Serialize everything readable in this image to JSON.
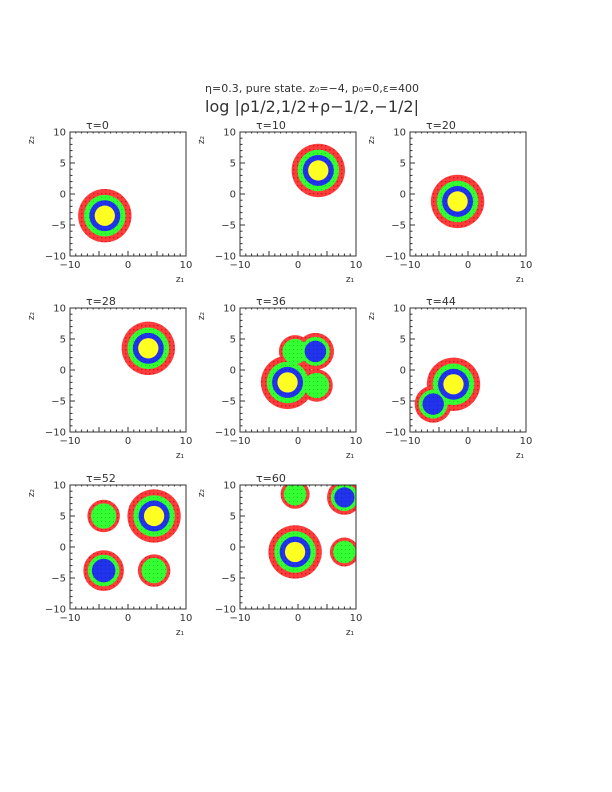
{
  "figure": {
    "title_line1": "η=0.3, pure state.  z₀=−4, p₀=0,ε=400",
    "title_line2": "log |ρ1/2,1/2+ρ−1/2,−1/2|"
  },
  "colors": {
    "ring_outer": "#ff3b3b",
    "ring_outer_dot": "#c41a1a",
    "ring_green": "#33ff33",
    "ring_blue": "#2233ee",
    "core": "#ffff22",
    "axis": "#333333"
  },
  "chart_data": [
    {
      "type": "heatmap",
      "tau_label": "τ=0",
      "xlabel": "z₁",
      "ylabel": "z₂",
      "xlim": [
        -10,
        10
      ],
      "ylim": [
        -10,
        10
      ],
      "xticks": [
        "−10",
        "0",
        "10"
      ],
      "yticks": [
        "10",
        "5",
        "0",
        "−5",
        "−10"
      ],
      "blobs": [
        {
          "x": -4,
          "y": -3.5,
          "r": 4.6,
          "levels": 4
        }
      ]
    },
    {
      "type": "heatmap",
      "tau_label": "τ=10",
      "xlabel": "z₁",
      "ylabel": "z₂",
      "xlim": [
        -10,
        10
      ],
      "ylim": [
        -10,
        10
      ],
      "xticks": [
        "−10",
        "0",
        "10"
      ],
      "yticks": [
        "10",
        "5",
        "0",
        "−5",
        "−10"
      ],
      "blobs": [
        {
          "x": 3.5,
          "y": 3.8,
          "r": 4.6,
          "levels": 4
        }
      ]
    },
    {
      "type": "heatmap",
      "tau_label": "τ=20",
      "xlabel": "z₁",
      "ylabel": "z₂",
      "xlim": [
        -10,
        10
      ],
      "ylim": [
        -10,
        10
      ],
      "xticks": [
        "−10",
        "0",
        "10"
      ],
      "yticks": [
        "10",
        "5",
        "0",
        "−5",
        "−10"
      ],
      "blobs": [
        {
          "x": -1.8,
          "y": -1.2,
          "r": 4.6,
          "levels": 4
        }
      ]
    },
    {
      "type": "heatmap",
      "tau_label": "τ=28",
      "xlabel": "z₁",
      "ylabel": "z₂",
      "xlim": [
        -10,
        10
      ],
      "ylim": [
        -10,
        10
      ],
      "xticks": [
        "−10",
        "0",
        "10"
      ],
      "yticks": [
        "10",
        "5",
        "0",
        "−5",
        "−10"
      ],
      "blobs": [
        {
          "x": 3.5,
          "y": 3.5,
          "r": 4.6,
          "levels": 4
        }
      ]
    },
    {
      "type": "heatmap",
      "tau_label": "τ=36",
      "xlabel": "z₁",
      "ylabel": "z₂",
      "xlim": [
        -10,
        10
      ],
      "ylim": [
        -10,
        10
      ],
      "xticks": [
        "−10",
        "0",
        "10"
      ],
      "yticks": [
        "10",
        "5",
        "0",
        "−5",
        "−10"
      ],
      "blobs": [
        {
          "x": -0.5,
          "y": 3.0,
          "r": 2.8,
          "levels": 2
        },
        {
          "x": 3.0,
          "y": 3.0,
          "r": 3.2,
          "levels": 3
        },
        {
          "x": 3.2,
          "y": -2.5,
          "r": 2.8,
          "levels": 2
        },
        {
          "x": -1.8,
          "y": -2.0,
          "r": 4.6,
          "levels": 4
        }
      ]
    },
    {
      "type": "heatmap",
      "tau_label": "τ=44",
      "xlabel": "z₁",
      "ylabel": "z₂",
      "xlim": [
        -10,
        10
      ],
      "ylim": [
        -10,
        10
      ],
      "xticks": [
        "−10",
        "0",
        "10"
      ],
      "yticks": [
        "10",
        "5",
        "0",
        "−5",
        "−10"
      ],
      "blobs": [
        {
          "x": -6.0,
          "y": -5.5,
          "r": 3.2,
          "levels": 3
        },
        {
          "x": -2.5,
          "y": -2.3,
          "r": 4.6,
          "levels": 4
        }
      ]
    },
    {
      "type": "heatmap",
      "tau_label": "τ=52",
      "xlabel": "z₁",
      "ylabel": "z₂",
      "xlim": [
        -10,
        10
      ],
      "ylim": [
        -10,
        10
      ],
      "xticks": [
        "−10",
        "0",
        "10"
      ],
      "yticks": [
        "10",
        "5",
        "0",
        "−5",
        "−10"
      ],
      "blobs": [
        {
          "x": -4.2,
          "y": 5.0,
          "r": 2.8,
          "levels": 2
        },
        {
          "x": 4.5,
          "y": 5.0,
          "r": 4.6,
          "levels": 4
        },
        {
          "x": -4.2,
          "y": -3.8,
          "r": 3.5,
          "levels": 3
        },
        {
          "x": 4.5,
          "y": -3.8,
          "r": 2.8,
          "levels": 2
        }
      ]
    },
    {
      "type": "heatmap",
      "tau_label": "τ=60",
      "xlabel": "z₁",
      "ylabel": "z₂",
      "xlim": [
        -10,
        10
      ],
      "ylim": [
        -10,
        10
      ],
      "xticks": [
        "−10",
        "0",
        "10"
      ],
      "yticks": [
        "10",
        "5",
        "0",
        "−5",
        "−10"
      ],
      "blobs": [
        {
          "x": -0.5,
          "y": 8.5,
          "r": 2.5,
          "levels": 2
        },
        {
          "x": 8.0,
          "y": 8.0,
          "r": 3.0,
          "levels": 3
        },
        {
          "x": -0.5,
          "y": -0.8,
          "r": 4.6,
          "levels": 4
        },
        {
          "x": 8.0,
          "y": -0.8,
          "r": 2.5,
          "levels": 2
        }
      ]
    }
  ]
}
